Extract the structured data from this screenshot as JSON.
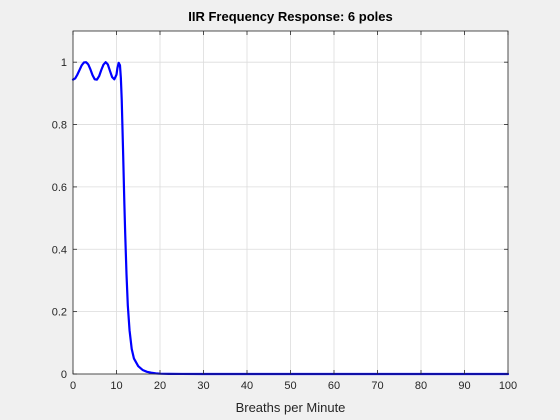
{
  "chart_data": {
    "type": "line",
    "title": "IIR Frequency Response: 6 poles",
    "xlabel": "Breaths per Minute",
    "ylabel": "",
    "xlim": [
      0,
      100
    ],
    "ylim": [
      0,
      1.1
    ],
    "xticks": [
      0,
      10,
      20,
      30,
      40,
      50,
      60,
      70,
      80,
      90,
      100
    ],
    "yticks": [
      0,
      0.2,
      0.4,
      0.6,
      0.8,
      1
    ],
    "xtick_labels": [
      "0",
      "10",
      "20",
      "30",
      "40",
      "50",
      "60",
      "70",
      "80",
      "90",
      "100"
    ],
    "ytick_labels": [
      "0",
      "0.2",
      "0.4",
      "0.6",
      "0.8",
      "1"
    ],
    "grid": true,
    "series": [
      {
        "name": "",
        "color": "#0000ff",
        "x": [
          0,
          0.5,
          1,
          1.5,
          2,
          2.5,
          3,
          3.5,
          4,
          4.5,
          5,
          5.5,
          6,
          6.5,
          7,
          7.5,
          8,
          8.5,
          9,
          9.5,
          10,
          10.2,
          10.5,
          10.8,
          11,
          11.2,
          11.5,
          11.8,
          12,
          12.3,
          12.6,
          13,
          13.5,
          14,
          15,
          16,
          17,
          18,
          19,
          20,
          22,
          25,
          30,
          40,
          50,
          60,
          70,
          80,
          90,
          100
        ],
        "y": [
          0.944,
          0.948,
          0.96,
          0.975,
          0.99,
          0.999,
          1.0,
          0.993,
          0.977,
          0.958,
          0.945,
          0.944,
          0.955,
          0.975,
          0.992,
          1.0,
          0.993,
          0.972,
          0.952,
          0.945,
          0.96,
          0.98,
          0.998,
          0.99,
          0.95,
          0.88,
          0.72,
          0.55,
          0.45,
          0.32,
          0.22,
          0.14,
          0.08,
          0.05,
          0.025,
          0.013,
          0.007,
          0.004,
          0.002,
          0.001,
          0.0005,
          0.0002,
          0.0001,
          0,
          0,
          0,
          0,
          0,
          0,
          0
        ]
      }
    ]
  }
}
